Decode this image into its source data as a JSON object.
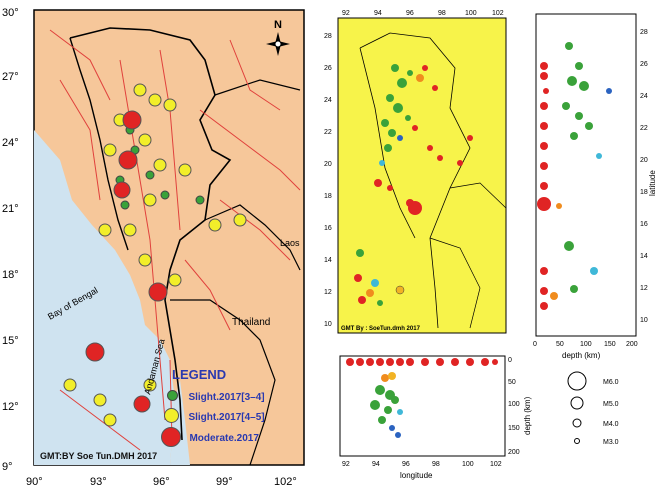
{
  "main_map": {
    "lat_ticks": [
      "30°",
      "27°",
      "24°",
      "21°",
      "18°",
      "15°",
      "12°",
      "9°"
    ],
    "lon_ticks": [
      "90°",
      "93°",
      "96°",
      "99°",
      "102°"
    ],
    "labels": {
      "bay": "Bay of Bengal",
      "andaman": "Andaman Sea",
      "thailand": "Thailand",
      "laos": "Laos",
      "north": "N"
    },
    "credit": "GMT:BY Soe Tun.DMH 2017",
    "legend": {
      "title": "LEGEND",
      "items": [
        {
          "label": "Slight.2017[3–4]",
          "color": "#3aa23a"
        },
        {
          "label": "Slight.2017[4–5]",
          "color": "#f2ee2a"
        },
        {
          "label": "Moderate.2017",
          "color": "#e02424"
        }
      ]
    }
  },
  "epicenter_map": {
    "lon_ticks": [
      "92",
      "94",
      "96",
      "98",
      "100",
      "102"
    ],
    "lat_ticks": [
      "28",
      "26",
      "24",
      "22",
      "20",
      "18",
      "16",
      "14",
      "12",
      "10"
    ],
    "credit": "GMT By : SoeTun.dmh 2017"
  },
  "depth_lat": {
    "x_ticks": [
      "0",
      "50",
      "100",
      "150",
      "200"
    ],
    "x_label": "depth (km)",
    "y_ticks": [
      "28",
      "26",
      "24",
      "22",
      "20",
      "18",
      "16",
      "14",
      "12",
      "10"
    ],
    "y_label": "latitude"
  },
  "depth_lon": {
    "x_ticks": [
      "92",
      "94",
      "96",
      "98",
      "100",
      "102"
    ],
    "x_label": "longitude",
    "y_ticks": [
      "0",
      "50",
      "100",
      "150",
      "200"
    ],
    "y_label": "depth (km)"
  },
  "magnitude_legend": [
    "M6.0",
    "M5.0",
    "M4.0",
    "M3.0"
  ],
  "colors": {
    "ocean": "#cfe3f0",
    "land": "#f6c79a",
    "yellow_panel": "#f7f34a",
    "fault": "#e0413c"
  }
}
